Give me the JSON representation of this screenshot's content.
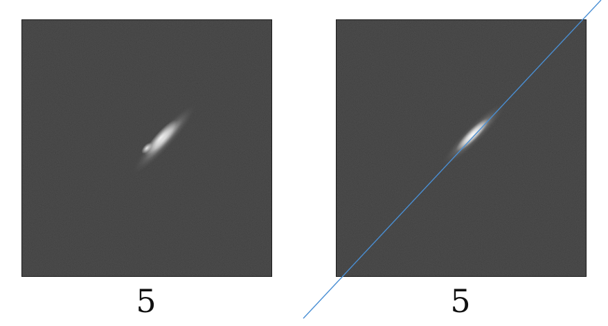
{
  "panels": [
    {
      "caption": "5"
    },
    {
      "caption": "5"
    }
  ],
  "colors": {
    "background": "#272727",
    "spot": "#ffffff",
    "annotation_line": "#4a8fd4"
  },
  "icons": [
    "noisy-image-panel",
    "bright-spot",
    "diagonal-line"
  ]
}
